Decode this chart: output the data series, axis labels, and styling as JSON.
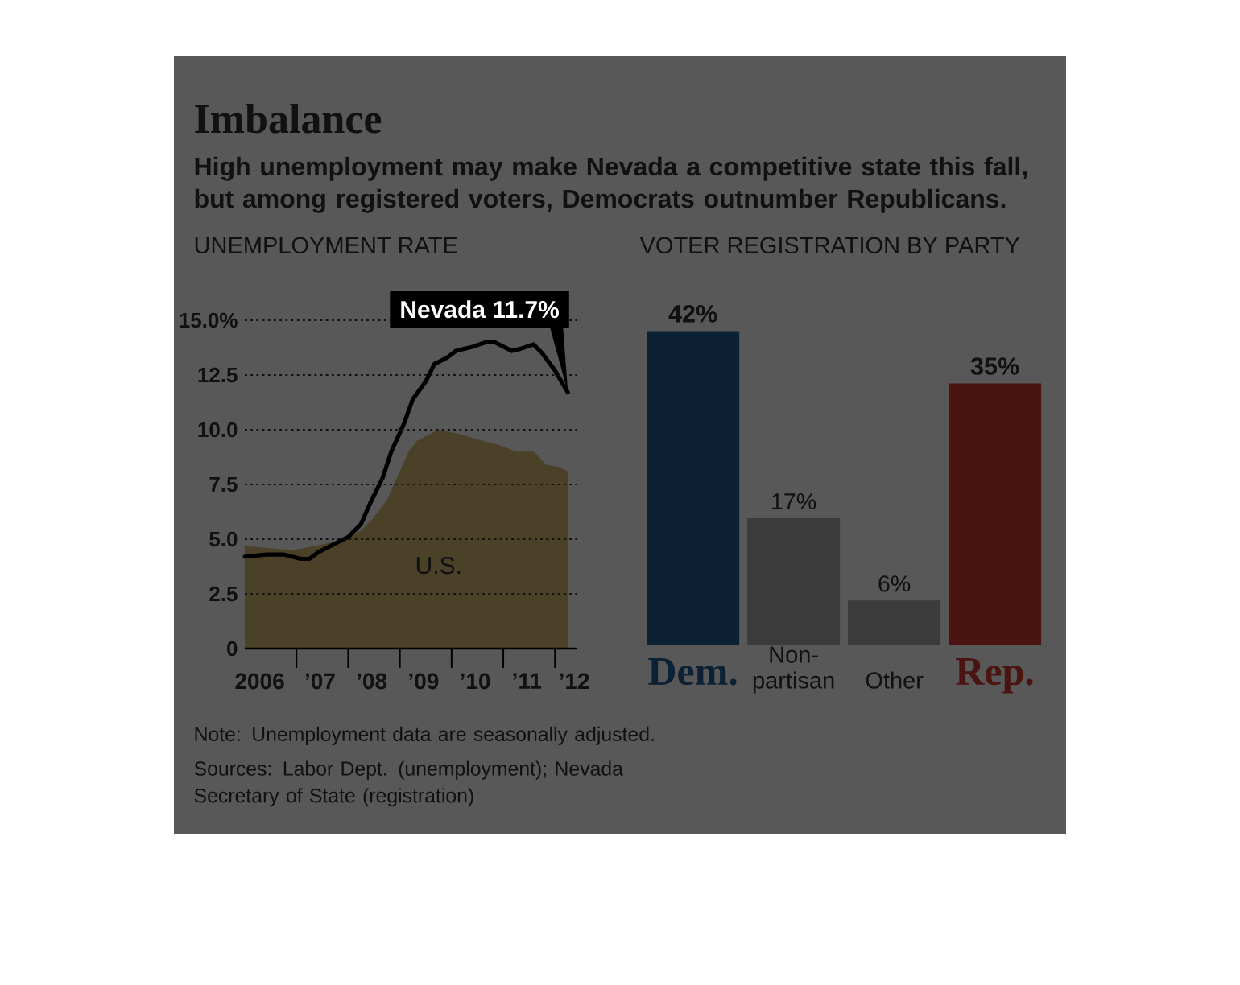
{
  "chart_data": [
    {
      "type": "other",
      "title": "Imbalance",
      "subtitle": "High unemployment may make Nevada a competitive state this fall, but among registered voters, Democrats outnumber Republicans.",
      "annotations": [
        "Note: Unemployment data are seasonally adjusted.",
        "Sources: Labor Dept. (unemployment); Nevada Secretary of State (registration)"
      ]
    },
    {
      "type": "line",
      "title": "UNEMPLOYMENT RATE",
      "xlim": [
        "2006-01",
        "2012-06"
      ],
      "xticks": [
        {
          "value": "2006-04-15",
          "label": "2006"
        },
        {
          "value": "2007-01",
          "label": null
        },
        {
          "value": "2007-06-15",
          "label": "’07"
        },
        {
          "value": "2008-01",
          "label": null
        },
        {
          "value": "2008-06-15",
          "label": "’08"
        },
        {
          "value": "2009-01",
          "label": null
        },
        {
          "value": "2009-06-15",
          "label": "’09"
        },
        {
          "value": "2010-01",
          "label": null
        },
        {
          "value": "2010-06-15",
          "label": "’10"
        },
        {
          "value": "2011-01",
          "label": null
        },
        {
          "value": "2011-06-15",
          "label": "’11"
        },
        {
          "value": "2012-01",
          "label": null
        },
        {
          "value": "2012-05-15",
          "label": "’12"
        }
      ],
      "ylim": [
        0,
        15
      ],
      "yticks": [
        0,
        2.5,
        {
          "value": 5,
          "label": "5.0"
        },
        7.5,
        {
          "value": 10,
          "label": "10.0"
        },
        12.5,
        {
          "value": 15,
          "label": "15.0%"
        }
      ],
      "grid": "y",
      "line_style": "solid",
      "series": [
        {
          "type": "area",
          "name": "U.S.",
          "color": "#4b4128",
          "x": [
            "2006-01",
            "2006-06",
            "2006-12",
            "2007-03",
            "2007-08",
            "2007-12",
            "2008-04",
            "2008-07",
            "2008-10",
            "2009-01",
            "2009-03",
            "2009-05",
            "2009-09",
            "2009-10",
            "2010-03",
            "2010-08",
            "2010-12",
            "2011-04",
            "2011-08",
            "2011-11",
            "2012-02",
            "2012-04"
          ],
          "values": [
            4.7,
            4.6,
            4.5,
            4.6,
            4.8,
            5.0,
            5.4,
            6.0,
            6.8,
            8.1,
            9.0,
            9.5,
            9.9,
            10.0,
            9.8,
            9.5,
            9.3,
            9.0,
            9.0,
            8.4,
            8.3,
            8.1
          ]
        },
        {
          "type": "line",
          "color": "#000000",
          "x": [
            "2006-01",
            "2006-06",
            "2006-10",
            "2007-02",
            "2007-04",
            "2007-06",
            "2007-10",
            "2008-01",
            "2008-04",
            "2008-06",
            "2008-09",
            "2008-11",
            "2009-02",
            "2009-04",
            "2009-07",
            "2009-09",
            "2009-12",
            "2010-02",
            "2010-06",
            "2010-09",
            "2010-11",
            "2011-03",
            "2011-05",
            "2011-08",
            "2011-10",
            "2012-01",
            "2012-04"
          ],
          "values": [
            4.2,
            4.3,
            4.3,
            4.1,
            4.1,
            4.4,
            4.8,
            5.1,
            5.7,
            6.6,
            7.8,
            9.0,
            10.3,
            11.4,
            12.2,
            13.0,
            13.3,
            13.6,
            13.8,
            14.0,
            14.0,
            13.6,
            13.7,
            13.9,
            13.5,
            12.7,
            11.7
          ]
        }
      ],
      "annotations": [
        {
          "text": "Nevada 11.7%",
          "x": "2012-04",
          "y": 11.7
        }
      ]
    },
    {
      "type": "bar",
      "title": "VOTER REGISTRATION BY PARTY",
      "categories": [
        "Dem.",
        "Non-partisan",
        "Other",
        "Rep."
      ],
      "values": [
        42,
        17,
        6,
        35
      ],
      "value_labels": [
        "42%",
        "17%",
        "6%",
        "35%"
      ],
      "colors": [
        "#0c2234",
        "#3b3b3b",
        "#3b3b3b",
        "#4a1410"
      ]
    }
  ]
}
